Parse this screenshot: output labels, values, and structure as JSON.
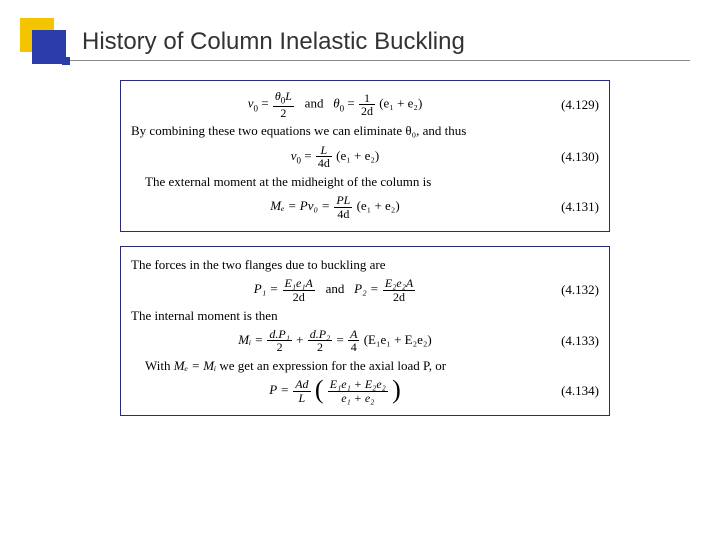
{
  "title": "History of Column Inelastic Buckling",
  "logo": {
    "back_color": "#f5c400",
    "front_color": "#2a3da8"
  },
  "title_rule_color": "#888888",
  "panel_border_color": "#2a2a7a",
  "panel1": {
    "eq1": {
      "lhs1": "v",
      "sub1": "0",
      "num1a": "θ",
      "num1asub": "0",
      "num1b": "L",
      "den1": "2",
      "and": " and ",
      "lhs2": "θ",
      "sub2": "0",
      "num2": "1",
      "den2": "2d",
      "tail": "(e₁ + e₂)",
      "eqnum": "(4.129)"
    },
    "line2": "By combining these two equations we can eliminate θ₀, and thus",
    "eq2": {
      "lhs": "v",
      "sub": "0",
      "num": "L",
      "den": "4d",
      "tail": "(e₁ + e₂)",
      "eqnum": "(4.130)"
    },
    "line3": "The external moment at the midheight of the column is",
    "eq3": {
      "lhs": "Mₑ = Pv₀ = ",
      "num": "PL",
      "den": "4d",
      "tail": "(e₁ + e₂)",
      "eqnum": "(4.131)"
    }
  },
  "panel2": {
    "line1": "The forces in the two flanges due to buckling are",
    "eq1": {
      "p1lhs": "P₁ = ",
      "p1num": "E₁e₁A",
      "p1den": "2d",
      "and": " and ",
      "p2lhs": "P₂ = ",
      "p2num": "E₂e₂A",
      "p2den": "2d",
      "eqnum": "(4.132)"
    },
    "line2": "The internal moment is then",
    "eq2": {
      "lhs": "Mᵢ = ",
      "f1num": "d.P₁",
      "f1den": "2",
      "plus": " + ",
      "f2num": "d.P₂",
      "f2den": "2",
      "eq": " = ",
      "f3num": "A",
      "f3den": "4",
      "tail": "(E₁e₁ + E₂e₂)",
      "eqnum": "(4.133)"
    },
    "line3a": "With ",
    "line3b": "Mₑ = Mᵢ",
    "line3c": " we get an expression for the axial load P, or",
    "eq3": {
      "lhs": "P = ",
      "onum": "Ad",
      "oden": "L",
      "innum": "E₁e₁ + E₂e₂",
      "inden": "e₁ + e₂",
      "eqnum": "(4.134)"
    }
  }
}
